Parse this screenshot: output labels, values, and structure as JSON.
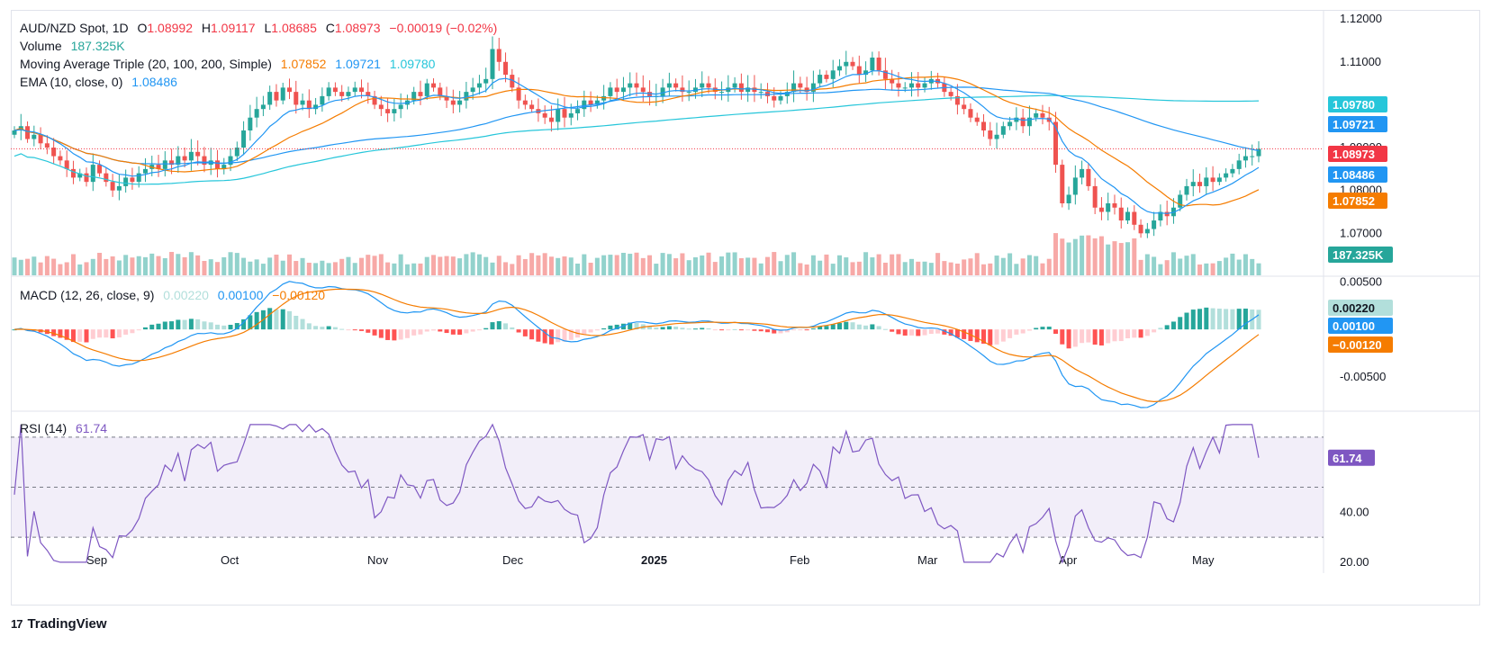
{
  "header": {
    "symbol": "AUD/NZD Spot, 1D",
    "open_label": "O",
    "open": "1.08992",
    "high_label": "H",
    "high": "1.09117",
    "low_label": "L",
    "low": "1.08685",
    "close_label": "C",
    "close": "1.08973",
    "change": "−0.00019 (−0.02%)"
  },
  "volume_legend": {
    "label": "Volume",
    "value": "187.325K"
  },
  "ma_legend": {
    "label": "Moving Average Triple (20, 100, 200, Simple)",
    "ma20": "1.07852",
    "ma100": "1.09721",
    "ma200": "1.09780"
  },
  "ema_legend": {
    "label": "EMA (10, close, 0)",
    "value": "1.08486"
  },
  "macd_legend": {
    "label": "MACD (12, 26, close, 9)",
    "hist": "0.00220",
    "macd": "0.00100",
    "signal": "−0.00120"
  },
  "rsi_legend": {
    "label": "RSI (14)",
    "value": "61.74"
  },
  "colors": {
    "up": "#26a69a",
    "down": "#ef5350",
    "ma20": "#f57c00",
    "ma100": "#2196f3",
    "ma200": "#26c6da",
    "ema": "#2196f3",
    "rsi": "#7e57c2"
  },
  "chart_data": [
    {
      "type": "candlestick",
      "title": "AUD/NZD Spot, 1D",
      "y_ticks": [
        "1.12000",
        "1.11000",
        "1.10000",
        "1.09000",
        "1.08000",
        "1.07000"
      ],
      "ylim": [
        1.0665,
        1.1215
      ],
      "x_ticks": [
        "Sep",
        "Oct",
        "Nov",
        "Dec",
        "2025",
        "Feb",
        "Mar",
        "Apr",
        "May"
      ],
      "price_tags": [
        {
          "value": 1.0978,
          "text": "1.09780",
          "color": "#26c6da"
        },
        {
          "value": 1.09721,
          "text": "1.09721",
          "color": "#2196f3"
        },
        {
          "value": 1.08973,
          "text": "1.08973",
          "color": "#f23645"
        },
        {
          "value": 1.08486,
          "text": "1.08486",
          "color": "#2196f3"
        },
        {
          "value": 1.07852,
          "text": "1.07852",
          "color": "#f57c00"
        }
      ],
      "volume_tag": "187.325K",
      "close_series": [
        1.094,
        1.095,
        1.092,
        1.093,
        1.091,
        1.09,
        1.088,
        1.087,
        1.085,
        1.083,
        1.084,
        1.082,
        1.086,
        1.084,
        1.082,
        1.08,
        1.081,
        1.083,
        1.082,
        1.084,
        1.085,
        1.086,
        1.085,
        1.087,
        1.086,
        1.088,
        1.087,
        1.089,
        1.088,
        1.086,
        1.087,
        1.085,
        1.086,
        1.088,
        1.09,
        1.094,
        1.097,
        1.099,
        1.1,
        1.103,
        1.101,
        1.104,
        1.103,
        1.1,
        1.101,
        1.099,
        1.1,
        1.102,
        1.104,
        1.103,
        1.102,
        1.103,
        1.104,
        1.103,
        1.102,
        1.1,
        1.099,
        1.098,
        1.099,
        1.1,
        1.101,
        1.103,
        1.102,
        1.105,
        1.104,
        1.102,
        1.101,
        1.1,
        1.101,
        1.103,
        1.104,
        1.105,
        1.106,
        1.113,
        1.11,
        1.107,
        1.104,
        1.101,
        1.1,
        1.099,
        1.098,
        1.097,
        1.096,
        1.099,
        1.097,
        1.098,
        1.099,
        1.101,
        1.1,
        1.101,
        1.102,
        1.104,
        1.103,
        1.104,
        1.105,
        1.104,
        1.103,
        1.102,
        1.102,
        1.104,
        1.105,
        1.104,
        1.103,
        1.103,
        1.104,
        1.105,
        1.104,
        1.103,
        1.103,
        1.104,
        1.105,
        1.103,
        1.104,
        1.103,
        1.103,
        1.102,
        1.101,
        1.102,
        1.103,
        1.105,
        1.104,
        1.103,
        1.105,
        1.107,
        1.106,
        1.108,
        1.109,
        1.11,
        1.109,
        1.107,
        1.108,
        1.111,
        1.108,
        1.106,
        1.105,
        1.104,
        1.104,
        1.105,
        1.104,
        1.105,
        1.106,
        1.105,
        1.103,
        1.102,
        1.1,
        1.099,
        1.097,
        1.096,
        1.094,
        1.092,
        1.093,
        1.095,
        1.096,
        1.097,
        1.095,
        1.097,
        1.098,
        1.097,
        1.096,
        1.086,
        1.077,
        1.079,
        1.083,
        1.085,
        1.081,
        1.076,
        1.075,
        1.077,
        1.076,
        1.073,
        1.075,
        1.072,
        1.07,
        1.071,
        1.073,
        1.075,
        1.074,
        1.076,
        1.079,
        1.081,
        1.082,
        1.081,
        1.083,
        1.082,
        1.083,
        1.084,
        1.085,
        1.087,
        1.088,
        1.088,
        1.0897
      ]
    },
    {
      "type": "bar",
      "title": "MACD (12, 26, close, 9)",
      "y_ticks": [
        "0.00500",
        "-0.00500"
      ],
      "ylim": [
        -0.0085,
        0.0055
      ],
      "latest": {
        "histogram": 0.0022,
        "macd": 0.001,
        "signal": -0.0012
      },
      "tags": [
        {
          "value": 0.0022,
          "text": "0.00220",
          "color": "#b2dfdb"
        },
        {
          "value": 0.001,
          "text": "0.00100",
          "color": "#2196f3"
        },
        {
          "value": -0.0012,
          "text": "−0.00120",
          "color": "#f57c00"
        }
      ]
    },
    {
      "type": "line",
      "title": "RSI (14)",
      "y_ticks": [
        "60.00",
        "40.00",
        "20.00"
      ],
      "ylim": [
        16,
        80
      ],
      "band": [
        30,
        70
      ],
      "latest": 61.74,
      "tag": {
        "value": 61.74,
        "text": "61.74",
        "color": "#7e57c2"
      }
    }
  ],
  "brand": {
    "name": "TradingView",
    "mark": "17"
  }
}
